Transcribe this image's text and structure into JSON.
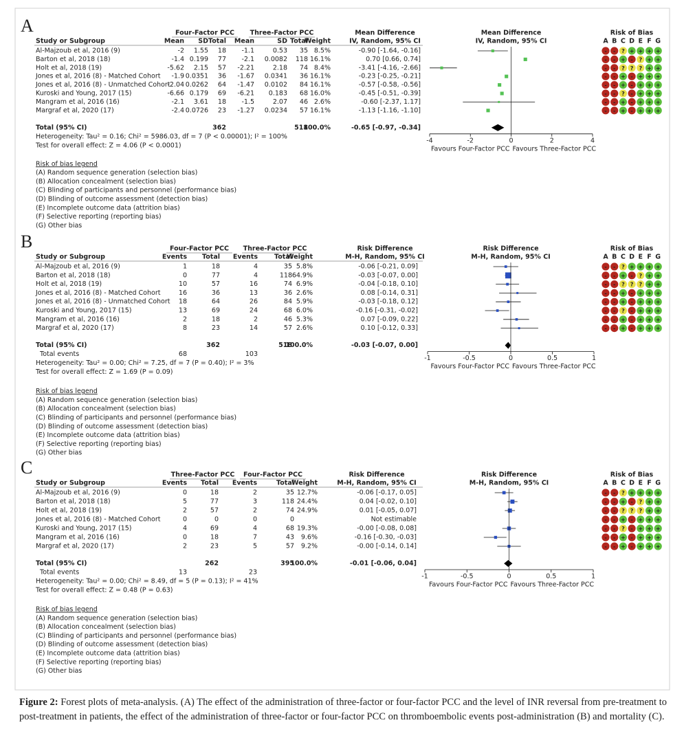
{
  "chart_data": [
    {
      "type": "forest",
      "letter": "A",
      "header_top": [
        "Four-Factor PCC",
        "Three-Factor PCC",
        "Mean Difference"
      ],
      "header": [
        "Study or Subgroup",
        "Mean",
        "SD",
        "Total",
        "Mean",
        "SD",
        "Total",
        "Weight",
        "IV, Random, 95% CI"
      ],
      "plot_header": [
        "Mean Difference",
        "IV, Random, 95% CI"
      ],
      "rob_title": "Risk of Bias",
      "rob_cols": [
        "A",
        "B",
        "C",
        "D",
        "E",
        "F",
        "G"
      ],
      "rob_colors": {
        "+": "#5cbf3c",
        "-": "#b3261e",
        "?": "#e8e04a"
      },
      "marker_color": "#55c255",
      "rows": [
        {
          "study": "Al-Majzoub et al, 2016 (9)",
          "cells": [
            "-2",
            "1.55",
            "18",
            "-1.1",
            "0.53",
            "35"
          ],
          "weight": 8.5,
          "weight_label": "8.5%",
          "effect_label": "-0.90 [-1.64, -0.16]",
          "est": -0.9,
          "lo": -1.64,
          "hi": -0.16,
          "rob": [
            "-",
            "-",
            "?",
            "+",
            "+",
            "+",
            "+"
          ]
        },
        {
          "study": "Barton et al, 2018 (18)",
          "cells": [
            "-1.4",
            "0.199",
            "77",
            "-2.1",
            "0.0082",
            "118"
          ],
          "weight": 16.1,
          "weight_label": "16.1%",
          "effect_label": "0.70 [0.66, 0.74]",
          "est": 0.7,
          "lo": 0.66,
          "hi": 0.74,
          "rob": [
            "-",
            "-",
            "+",
            "-",
            "?",
            "+",
            "+"
          ]
        },
        {
          "study": "Holt et al, 2018 (19)",
          "cells": [
            "-5.62",
            "2.15",
            "57",
            "-2.21",
            "2.18",
            "74"
          ],
          "weight": 8.4,
          "weight_label": "8.4%",
          "effect_label": "-3.41 [-4.16, -2.66]",
          "est": -3.41,
          "lo": -4.16,
          "hi": -2.66,
          "rob": [
            "-",
            "-",
            "?",
            "?",
            "?",
            "+",
            "+"
          ]
        },
        {
          "study": "Jones et al, 2016 (8) - Matched Cohort",
          "cells": [
            "-1.9",
            "0.0351",
            "36",
            "-1.67",
            "0.0341",
            "36"
          ],
          "weight": 16.1,
          "weight_label": "16.1%",
          "effect_label": "-0.23 [-0.25, -0.21]",
          "est": -0.23,
          "lo": -0.25,
          "hi": -0.21,
          "rob": [
            "-",
            "-",
            "+",
            "-",
            "+",
            "+",
            "+"
          ]
        },
        {
          "study": "Jones et al, 2016 (8) - Unmatched Cohort",
          "cells": [
            "-2.04",
            "0.0262",
            "64",
            "-1.47",
            "0.0102",
            "84"
          ],
          "weight": 16.1,
          "weight_label": "16.1%",
          "effect_label": "-0.57 [-0.58, -0.56]",
          "est": -0.57,
          "lo": -0.58,
          "hi": -0.56,
          "rob": [
            "-",
            "-",
            "+",
            "-",
            "+",
            "+",
            "+"
          ]
        },
        {
          "study": "Kuroski and Young, 2017 (15)",
          "cells": [
            "-6.66",
            "0.179",
            "69",
            "-6.21",
            "0.183",
            "68"
          ],
          "weight": 16.0,
          "weight_label": "16.0%",
          "effect_label": "-0.45 [-0.51, -0.39]",
          "est": -0.45,
          "lo": -0.51,
          "hi": -0.39,
          "rob": [
            "-",
            "-",
            "?",
            "-",
            "+",
            "+",
            "+"
          ]
        },
        {
          "study": "Mangram et al, 2016 (16)",
          "cells": [
            "-2.1",
            "3.61",
            "18",
            "-1.5",
            "2.07",
            "46"
          ],
          "weight": 2.6,
          "weight_label": "2.6%",
          "effect_label": "-0.60 [-2.37, 1.17]",
          "est": -0.6,
          "lo": -2.37,
          "hi": 1.17,
          "rob": [
            "-",
            "-",
            "+",
            "-",
            "+",
            "+",
            "+"
          ]
        },
        {
          "study": "Margraf et al, 2020 (17)",
          "cells": [
            "-2.4",
            "0.0726",
            "23",
            "-1.27",
            "0.0234",
            "57"
          ],
          "weight": 16.1,
          "weight_label": "16.1%",
          "effect_label": "-1.13 [-1.16, -1.10]",
          "est": -1.13,
          "lo": -1.16,
          "hi": -1.1,
          "rob": [
            "-",
            "-",
            "+",
            "-",
            "+",
            "+",
            "+"
          ]
        }
      ],
      "total": {
        "label": "Total (95% CI)",
        "cells": [
          "362",
          "518"
        ],
        "weight_label": "100.0%",
        "effect_label": "-0.65 [-0.97, -0.34]",
        "est": -0.65,
        "lo": -0.97,
        "hi": -0.34
      },
      "notes": [
        "Heterogeneity: Tau² = 0.16; Chi² = 5986.03, df = 7 (P < 0.00001); I² = 100%",
        "Test for overall effect: Z = 4.06 (P < 0.0001)"
      ],
      "xlim": [
        -4,
        4
      ],
      "xticks": [
        -4,
        -2,
        0,
        2,
        4
      ],
      "favours": [
        "Favours Four-Factor PCC",
        "Favours Three-Factor PCC"
      ],
      "legend_title": "Risk of bias legend",
      "legend": [
        "(A) Random sequence generation (selection bias)",
        "(B) Allocation concealment (selection bias)",
        "(C) Blinding of participants and personnel (performance bias)",
        "(D) Blinding of outcome assessment (detection bias)",
        "(E) Incomplete outcome data (attrition bias)",
        "(F) Selective reporting (reporting bias)",
        "(G) Other bias"
      ]
    },
    {
      "type": "forest",
      "letter": "B",
      "header_top": [
        "Four-Factor PCC",
        "Three-Factor PCC",
        "Risk Difference"
      ],
      "header": [
        "Study or Subgroup",
        "Events",
        "Total",
        "Events",
        "Total",
        "Weight",
        "M-H, Random, 95% CI"
      ],
      "plot_header": [
        "Risk Difference",
        "M-H, Random, 95% CI"
      ],
      "rob_title": "Risk of Bias",
      "rob_cols": [
        "A",
        "B",
        "C",
        "D",
        "E",
        "F",
        "G"
      ],
      "rob_colors": {
        "+": "#5cbf3c",
        "-": "#b3261e",
        "?": "#e8e04a"
      },
      "marker_color": "#2a4fc0",
      "rows": [
        {
          "study": "Al-Majzoub et al, 2016 (9)",
          "cells": [
            "1",
            "18",
            "4",
            "35"
          ],
          "weight": 5.8,
          "weight_label": "5.8%",
          "effect_label": "-0.06 [-0.21, 0.09]",
          "est": -0.06,
          "lo": -0.21,
          "hi": 0.09,
          "rob": [
            "-",
            "-",
            "?",
            "+",
            "+",
            "+",
            "+"
          ]
        },
        {
          "study": "Barton et al, 2018 (18)",
          "cells": [
            "0",
            "77",
            "4",
            "118"
          ],
          "weight": 64.9,
          "weight_label": "64.9%",
          "effect_label": "-0.03 [-0.07, 0.00]",
          "est": -0.03,
          "lo": -0.07,
          "hi": 0.0,
          "rob": [
            "-",
            "-",
            "+",
            "-",
            "?",
            "+",
            "+"
          ]
        },
        {
          "study": "Holt et al, 2018 (19)",
          "cells": [
            "10",
            "57",
            "16",
            "74"
          ],
          "weight": 6.9,
          "weight_label": "6.9%",
          "effect_label": "-0.04 [-0.18, 0.10]",
          "est": -0.04,
          "lo": -0.18,
          "hi": 0.1,
          "rob": [
            "-",
            "-",
            "?",
            "?",
            "?",
            "+",
            "+"
          ]
        },
        {
          "study": "Jones et al, 2016 (8) - Matched Cohort",
          "cells": [
            "16",
            "36",
            "13",
            "36"
          ],
          "weight": 2.6,
          "weight_label": "2.6%",
          "effect_label": "0.08 [-0.14, 0.31]",
          "est": 0.08,
          "lo": -0.14,
          "hi": 0.31,
          "rob": [
            "-",
            "-",
            "+",
            "-",
            "+",
            "+",
            "+"
          ]
        },
        {
          "study": "Jones et al, 2016 (8) - Unmatched Cohort",
          "cells": [
            "18",
            "64",
            "26",
            "84"
          ],
          "weight": 5.9,
          "weight_label": "5.9%",
          "effect_label": "-0.03 [-0.18, 0.12]",
          "est": -0.03,
          "lo": -0.18,
          "hi": 0.12,
          "rob": [
            "-",
            "-",
            "+",
            "-",
            "+",
            "+",
            "+"
          ]
        },
        {
          "study": "Kuroski and Young, 2017 (15)",
          "cells": [
            "13",
            "69",
            "24",
            "68"
          ],
          "weight": 6.0,
          "weight_label": "6.0%",
          "effect_label": "-0.16 [-0.31, -0.02]",
          "est": -0.16,
          "lo": -0.31,
          "hi": -0.02,
          "rob": [
            "-",
            "-",
            "?",
            "-",
            "+",
            "+",
            "+"
          ]
        },
        {
          "study": "Mangram et al, 2016 (16)",
          "cells": [
            "2",
            "18",
            "2",
            "46"
          ],
          "weight": 5.3,
          "weight_label": "5.3%",
          "effect_label": "0.07 [-0.09, 0.22]",
          "est": 0.07,
          "lo": -0.09,
          "hi": 0.22,
          "rob": [
            "-",
            "-",
            "+",
            "-",
            "+",
            "+",
            "+"
          ]
        },
        {
          "study": "Margraf et al, 2020 (17)",
          "cells": [
            "8",
            "23",
            "14",
            "57"
          ],
          "weight": 2.6,
          "weight_label": "2.6%",
          "effect_label": "0.10 [-0.12, 0.33]",
          "est": 0.1,
          "lo": -0.12,
          "hi": 0.33,
          "rob": [
            "-",
            "-",
            "+",
            "-",
            "+",
            "+",
            "+"
          ]
        }
      ],
      "total": {
        "label": "Total (95% CI)",
        "cells": [
          "362",
          "518"
        ],
        "weight_label": "100.0%",
        "effect_label": "-0.03 [-0.07, 0.00]",
        "est": -0.03,
        "lo": -0.07,
        "hi": 0.0
      },
      "total_events": {
        "label": "Total events",
        "values": [
          "68",
          "103"
        ]
      },
      "notes": [
        "Heterogeneity: Tau² = 0.00; Chi² = 7.25, df = 7 (P = 0.40); I² = 3%",
        "Test for overall effect: Z = 1.69 (P = 0.09)"
      ],
      "xlim": [
        -1,
        1
      ],
      "xticks": [
        -1,
        -0.5,
        0,
        0.5,
        1
      ],
      "favours": [
        "Favours Four-Factor PCC",
        "Favours Three-Factor PCC"
      ],
      "legend_title": "Risk of bias legend",
      "legend": [
        "(A) Random sequence generation (selection bias)",
        "(B) Allocation concealment (selection bias)",
        "(C) Blinding of participants and personnel (performance bias)",
        "(D) Blinding of outcome assessment (detection bias)",
        "(E) Incomplete outcome data (attrition bias)",
        "(F) Selective reporting (reporting bias)",
        "(G) Other bias"
      ]
    },
    {
      "type": "forest",
      "letter": "C",
      "header_top": [
        "Three-Factor PCC",
        "Four-Factor PCC",
        "Risk Difference"
      ],
      "header": [
        "Study or Subgroup",
        "Events",
        "Total",
        "Events",
        "Total",
        "Weight",
        "M-H, Random, 95% CI"
      ],
      "plot_header": [
        "Risk Difference",
        "M-H, Random, 95% CI"
      ],
      "rob_title": "Risk of Bias",
      "rob_cols": [
        "A",
        "B",
        "C",
        "D",
        "E",
        "F",
        "G"
      ],
      "rob_colors": {
        "+": "#5cbf3c",
        "-": "#b3261e",
        "?": "#e8e04a"
      },
      "marker_color": "#2a4fc0",
      "rows": [
        {
          "study": "Al-Majzoub et al, 2016 (9)",
          "cells": [
            "0",
            "18",
            "2",
            "35"
          ],
          "weight": 12.7,
          "weight_label": "12.7%",
          "effect_label": "-0.06 [-0.17, 0.05]",
          "est": -0.06,
          "lo": -0.17,
          "hi": 0.05,
          "rob": [
            "-",
            "-",
            "?",
            "+",
            "+",
            "+",
            "+"
          ]
        },
        {
          "study": "Barton et al, 2018 (18)",
          "cells": [
            "5",
            "77",
            "3",
            "118"
          ],
          "weight": 24.4,
          "weight_label": "24.4%",
          "effect_label": "0.04 [-0.02, 0.10]",
          "est": 0.04,
          "lo": -0.02,
          "hi": 0.1,
          "rob": [
            "-",
            "-",
            "+",
            "-",
            "?",
            "+",
            "+"
          ]
        },
        {
          "study": "Holt et al, 2018 (19)",
          "cells": [
            "2",
            "57",
            "2",
            "74"
          ],
          "weight": 24.9,
          "weight_label": "24.9%",
          "effect_label": "0.01 [-0.05, 0.07]",
          "est": 0.01,
          "lo": -0.05,
          "hi": 0.07,
          "rob": [
            "-",
            "-",
            "?",
            "?",
            "?",
            "+",
            "+"
          ]
        },
        {
          "study": "Jones et al, 2016 (8) - Matched Cohort",
          "cells": [
            "0",
            "0",
            "0",
            "0"
          ],
          "weight": null,
          "effect_label": "Not estimable",
          "est": null,
          "lo": null,
          "hi": null,
          "rob": [
            "-",
            "-",
            "+",
            "-",
            "+",
            "+",
            "+"
          ]
        },
        {
          "study": "Kuroski and Young, 2017 (15)",
          "cells": [
            "4",
            "69",
            "4",
            "68"
          ],
          "weight": 19.3,
          "weight_label": "19.3%",
          "effect_label": "-0.00 [-0.08, 0.08]",
          "est": -0.0,
          "lo": -0.08,
          "hi": 0.08,
          "rob": [
            "-",
            "-",
            "?",
            "-",
            "+",
            "+",
            "+"
          ]
        },
        {
          "study": "Mangram et al, 2016 (16)",
          "cells": [
            "0",
            "18",
            "7",
            "43"
          ],
          "weight": 9.6,
          "weight_label": "9.6%",
          "effect_label": "-0.16 [-0.30, -0.03]",
          "est": -0.16,
          "lo": -0.3,
          "hi": -0.03,
          "rob": [
            "-",
            "-",
            "+",
            "-",
            "+",
            "+",
            "+"
          ]
        },
        {
          "study": "Margraf et al, 2020 (17)",
          "cells": [
            "2",
            "23",
            "5",
            "57"
          ],
          "weight": 9.2,
          "weight_label": "9.2%",
          "effect_label": "-0.00 [-0.14, 0.14]",
          "est": -0.0,
          "lo": -0.14,
          "hi": 0.14,
          "rob": [
            "-",
            "-",
            "+",
            "-",
            "+",
            "+",
            "+"
          ]
        }
      ],
      "total": {
        "label": "Total (95% CI)",
        "cells": [
          "262",
          "395"
        ],
        "weight_label": "100.0%",
        "effect_label": "-0.01 [-0.06, 0.04]",
        "est": -0.01,
        "lo": -0.06,
        "hi": 0.04
      },
      "total_events": {
        "label": "Total events",
        "values": [
          "13",
          "23"
        ]
      },
      "notes": [
        "Heterogeneity: Tau² = 0.00; Chi² = 8.49, df = 5 (P = 0.13); I² = 41%",
        "Test for overall effect: Z = 0.48 (P = 0.63)"
      ],
      "xlim": [
        -1,
        1
      ],
      "xticks": [
        -1,
        -0.5,
        0,
        0.5,
        1
      ],
      "favours": [
        "Favours Four-Factor PCC",
        "Favours Three-Factor PCC"
      ],
      "legend_title": "Risk of bias legend",
      "legend": [
        "(A) Random sequence generation (selection bias)",
        "(B) Allocation concealment (selection bias)",
        "(C) Blinding of participants and personnel (performance bias)",
        "(D) Blinding of outcome assessment (detection bias)",
        "(E) Incomplete outcome data (attrition bias)",
        "(F) Selective reporting (reporting bias)",
        "(G) Other bias"
      ]
    }
  ],
  "caption": {
    "label": "Figure 2:",
    "text": "Forest plots of meta-analysis. (A) The effect of the administration of three-factor or four-factor PCC and the level of INR reversal from pre-treatment to post-treatment in patients, the effect of the administration of three-factor or four-factor PCC on thromboembolic events post-administration (B) and mortality (C)."
  }
}
